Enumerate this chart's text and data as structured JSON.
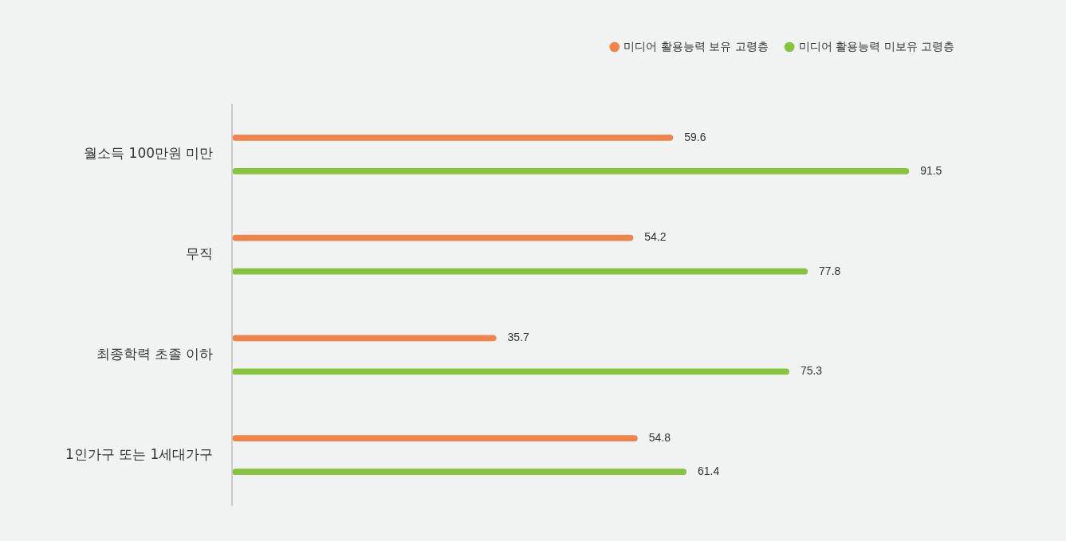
{
  "chart_data": {
    "type": "bar",
    "orientation": "horizontal",
    "categories": [
      "월소득 100만원 미만",
      "무직",
      "최종학력 초졸 이하",
      "1인가구 또는 1세대가구"
    ],
    "series": [
      {
        "name": "미디어 활용능력 보유 고령층",
        "color": "#f0844a",
        "values": [
          59.6,
          54.2,
          35.7,
          54.8
        ]
      },
      {
        "name": "미디어 활용능력 미보유 고령층",
        "color": "#86c440",
        "values": [
          91.5,
          77.8,
          75.3,
          61.4
        ]
      }
    ],
    "tick_labels": "y",
    "legend": "top right",
    "data_labels": true
  }
}
